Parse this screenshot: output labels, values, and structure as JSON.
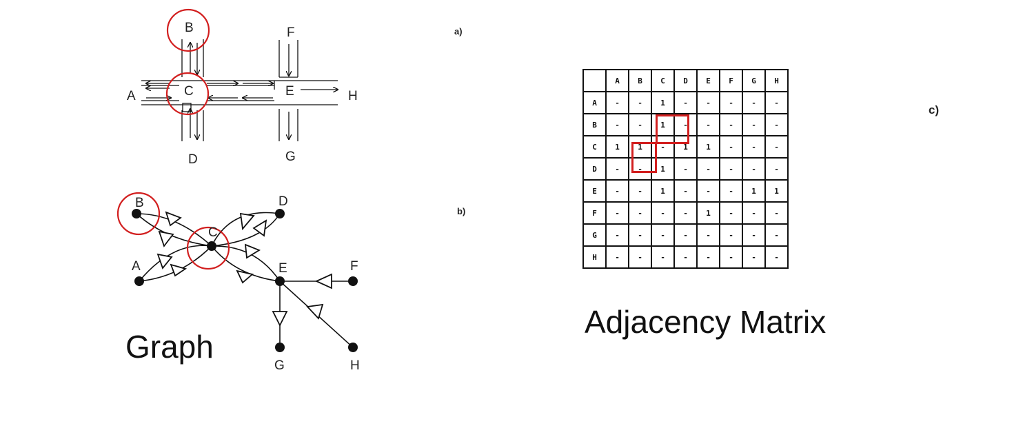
{
  "panels": {
    "a": "a)",
    "b": "b)",
    "c": "c)"
  },
  "traffic": {
    "nodes": [
      "A",
      "B",
      "C",
      "D",
      "E",
      "F",
      "G",
      "H"
    ]
  },
  "graph": {
    "caption": "Graph",
    "nodes": [
      "A",
      "B",
      "C",
      "D",
      "E",
      "F",
      "G",
      "H"
    ]
  },
  "matrix": {
    "caption": "Adjacency Matrix",
    "headers": [
      "A",
      "B",
      "C",
      "D",
      "E",
      "F",
      "G",
      "H"
    ],
    "rows": [
      [
        "-",
        "-",
        "1",
        "-",
        "-",
        "-",
        "-",
        "-"
      ],
      [
        "-",
        "-",
        "1",
        "-",
        "-",
        "-",
        "-",
        "-"
      ],
      [
        "1",
        "1",
        "-",
        "1",
        "1",
        "-",
        "-",
        "-"
      ],
      [
        "-",
        "-",
        "1",
        "-",
        "-",
        "-",
        "-",
        "-"
      ],
      [
        "-",
        "-",
        "1",
        "-",
        "-",
        "-",
        "1",
        "1"
      ],
      [
        "-",
        "-",
        "-",
        "-",
        "1",
        "-",
        "-",
        "-"
      ],
      [
        "-",
        "-",
        "-",
        "-",
        "-",
        "-",
        "-",
        "-"
      ],
      [
        "-",
        "-",
        "-",
        "-",
        "-",
        "-",
        "-",
        "-"
      ]
    ],
    "highlighted_cells": [
      {
        "row": "B",
        "col": "C"
      },
      {
        "row": "C",
        "col": "B"
      }
    ]
  },
  "colors": {
    "highlight": "#d21f1f",
    "ink": "#111111"
  }
}
